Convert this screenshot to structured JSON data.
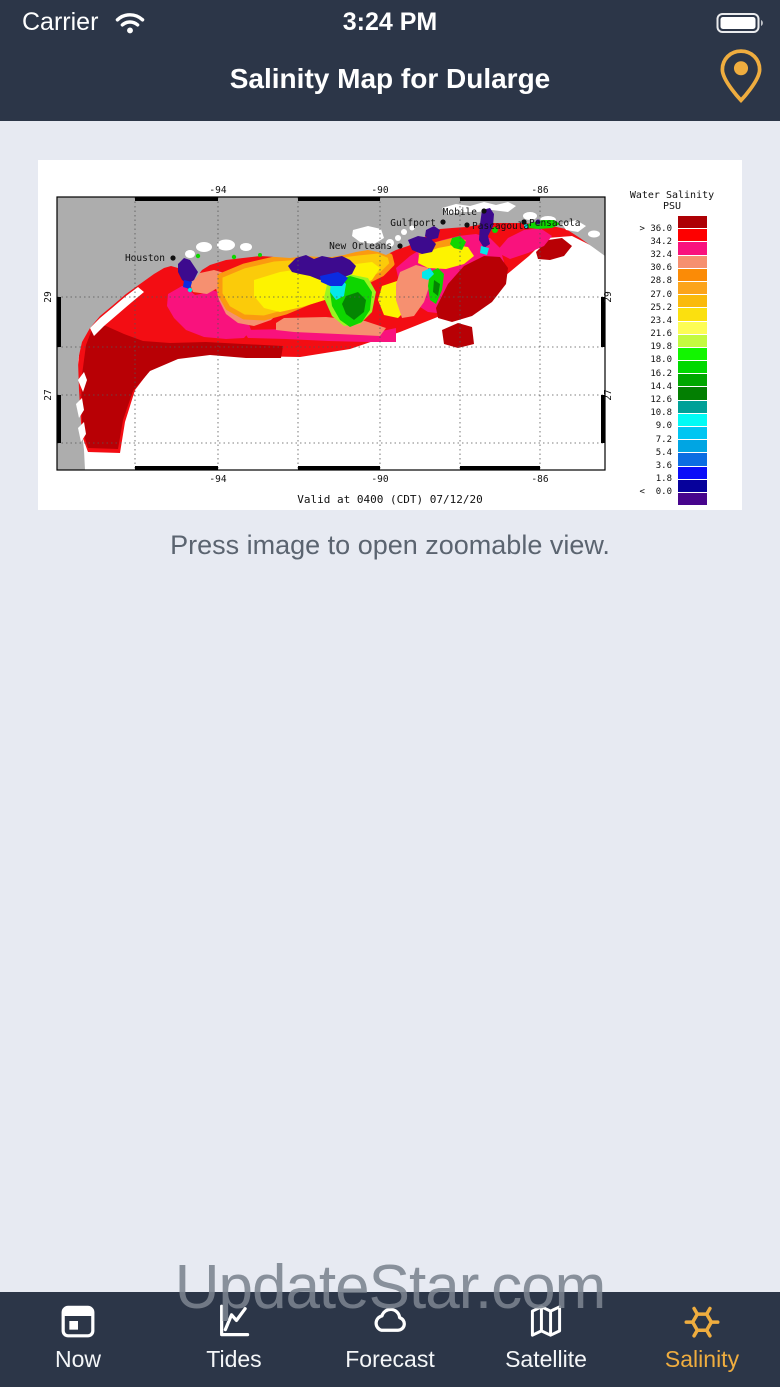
{
  "status_bar": {
    "carrier": "Carrier",
    "time": "3:24 PM"
  },
  "header": {
    "title": "Salinity Map for Dularge"
  },
  "map": {
    "caption": "Valid at 0400 (CDT) 07/12/20",
    "cities": {
      "houston": "Houston",
      "new_orleans": "New Orleans",
      "gulfport": "Gulfport",
      "mobile": "Mobile",
      "pascagoula": "Pascagoula",
      "pensacola": "Pensacola"
    },
    "lon_ticks": {
      "t94": "-94",
      "t90": "-90",
      "t86": "-86"
    },
    "lat_ticks": {
      "t29": "29",
      "t27": "27"
    }
  },
  "legend": {
    "title": "Water Salinity",
    "units": "PSU",
    "labels": [
      "> 36.0",
      "34.2",
      "32.4",
      "30.6",
      "28.8",
      "27.0",
      "25.2",
      "23.4",
      "21.6",
      "19.8",
      "18.0",
      "16.2",
      "14.4",
      "12.6",
      "10.8",
      "9.0",
      "7.2",
      "5.4",
      "3.6",
      "1.8",
      "<  0.0"
    ],
    "colors": [
      "#AD0005",
      "#FE0000",
      "#F9127D",
      "#F69070",
      "#FB8B06",
      "#FCA41B",
      "#FABA0C",
      "#FBE00F",
      "#FDFD55",
      "#C3FA40",
      "#12F500",
      "#00D900",
      "#00A700",
      "#037F02",
      "#00A097",
      "#01FBF5",
      "#00C6F2",
      "#00A5E3",
      "#0B6DE2",
      "#0B0DF8",
      "#06019B",
      "#47058D"
    ]
  },
  "hint": "Press image to open zoomable view.",
  "watermark": "UpdateStar.com",
  "tab_bar": {
    "items": [
      {
        "label": "Now",
        "icon": "calendar-icon",
        "active": false
      },
      {
        "label": "Tides",
        "icon": "tide-chart-icon",
        "active": false
      },
      {
        "label": "Forecast",
        "icon": "cloud-icon",
        "active": false
      },
      {
        "label": "Satellite",
        "icon": "folded-map-icon",
        "active": false
      },
      {
        "label": "Salinity",
        "icon": "molecule-icon",
        "active": true
      }
    ]
  },
  "colors": {
    "accent_gold": "#EFAD3F",
    "nav_background": "#2C3648",
    "page_background": "#E7EAF2"
  }
}
